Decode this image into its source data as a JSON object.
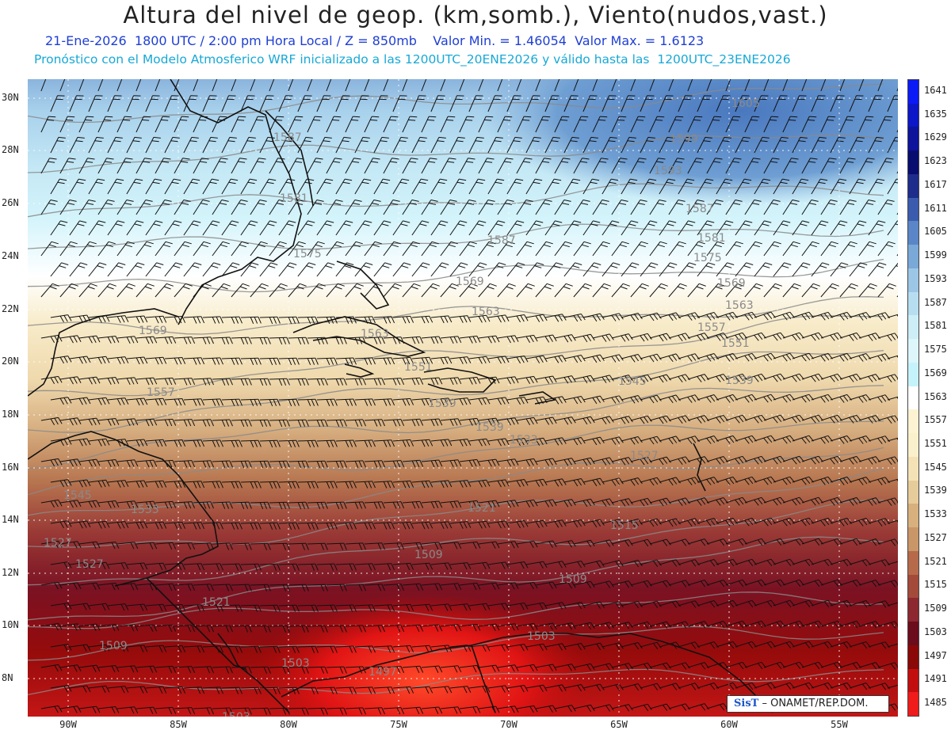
{
  "header": {
    "title": "Altura del nivel de geop. (km,somb.), Viento(nudos,vast.)",
    "subtitle_line1": "21-Ene-2026  1800 UTC / 2:00 pm Hora Local / Z = 850mb    Valor Min. = 1.46054  Valor Max. = 1.6123",
    "subtitle_line2": "Pronóstico con el Modelo Atmosferico WRF inicializado a las 1200UTC_20ENE2026 y válido hasta las  1200UTC_23ENE2026"
  },
  "map": {
    "lat_labels": [
      "30N",
      "28N",
      "26N",
      "24N",
      "22N",
      "20N",
      "18N",
      "16N",
      "14N",
      "12N",
      "10N",
      "8N"
    ],
    "lon_labels": [
      "90W",
      "85W",
      "80W",
      "75W",
      "70W",
      "65W",
      "60W",
      "55W"
    ],
    "contour_labels": [
      {
        "text": "1605"
      },
      {
        "text": "1599"
      },
      {
        "text": "1593"
      },
      {
        "text": "1587"
      },
      {
        "text": "1587"
      },
      {
        "text": "1587"
      },
      {
        "text": "1581"
      },
      {
        "text": "1581"
      },
      {
        "text": "1575"
      },
      {
        "text": "1575"
      },
      {
        "text": "1569"
      },
      {
        "text": "1569"
      },
      {
        "text": "1569"
      },
      {
        "text": "1563"
      },
      {
        "text": "1563"
      },
      {
        "text": "1563"
      },
      {
        "text": "1557"
      },
      {
        "text": "1557"
      },
      {
        "text": "1551"
      },
      {
        "text": "1551"
      },
      {
        "text": "1545"
      },
      {
        "text": "1545"
      },
      {
        "text": "1539"
      },
      {
        "text": "1539"
      },
      {
        "text": "1533"
      },
      {
        "text": "1533"
      },
      {
        "text": "1527"
      },
      {
        "text": "1527"
      },
      {
        "text": "1527"
      },
      {
        "text": "1521"
      },
      {
        "text": "1521"
      },
      {
        "text": "1515"
      },
      {
        "text": "1509"
      },
      {
        "text": "1509"
      },
      {
        "text": "1509"
      },
      {
        "text": "1503"
      },
      {
        "text": "1503"
      },
      {
        "text": "1503"
      },
      {
        "text": "1497"
      },
      {
        "text": "1539"
      }
    ],
    "credit_logo": "SisT",
    "credit_text": "– ONAMET/REP.DOM."
  },
  "colorbar": {
    "levels": [
      "1641",
      "1635",
      "1629",
      "1623",
      "1617",
      "1611",
      "1605",
      "1599",
      "1593",
      "1587",
      "1581",
      "1575",
      "1569",
      "1563",
      "1557",
      "1551",
      "1545",
      "1539",
      "1533",
      "1527",
      "1521",
      "1515",
      "1509",
      "1503",
      "1497",
      "1491",
      "1485"
    ],
    "colors": [
      "#0b1bf5",
      "#0c17c8",
      "#0d139b",
      "#0a0d70",
      "#1e2c8c",
      "#3b5cae",
      "#5a86c7",
      "#7aa8d7",
      "#9dc6e6",
      "#b7def0",
      "#cdeef7",
      "#ddf6fb",
      "#c6f3fb",
      "#ffffff",
      "#fdf3d2",
      "#fbf0cc",
      "#f4e2b6",
      "#e7cc9b",
      "#d7b07e",
      "#c99668",
      "#b76a4a",
      "#a44a3a",
      "#8d2830",
      "#6b0d1c",
      "#8a0808",
      "#c20e0e",
      "#f01b1b"
    ]
  }
}
